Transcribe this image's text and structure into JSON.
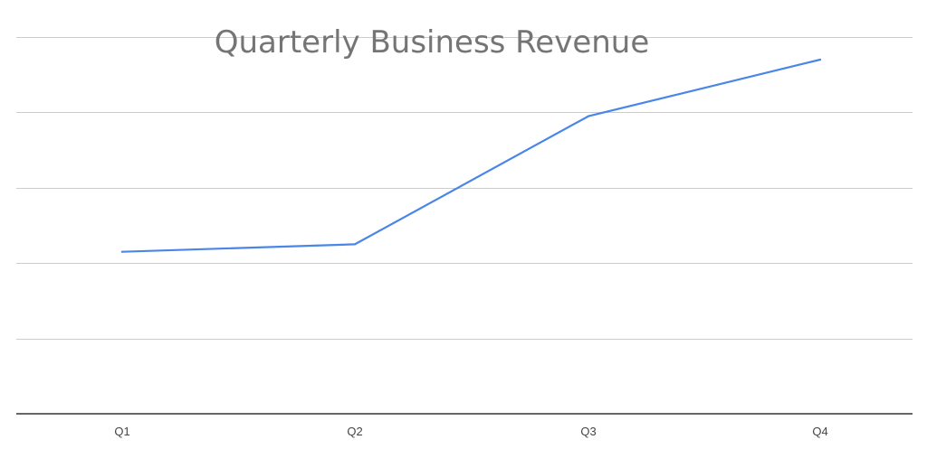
{
  "chart_data": {
    "type": "line",
    "title": "Quarterly Business Revenue",
    "xlabel": "",
    "ylabel": "",
    "categories": [
      "Q1",
      "Q2",
      "Q3",
      "Q4"
    ],
    "series": [
      {
        "values": [
          215,
          225,
          395,
          470
        ]
      }
    ],
    "ylim": [
      0,
      500
    ],
    "grid": true,
    "legend": "none",
    "colors": {
      "line": "#4a86e8",
      "grid": "#cccccc",
      "baseline": "#333333",
      "title": "#757575",
      "ticks": "#444444"
    }
  }
}
